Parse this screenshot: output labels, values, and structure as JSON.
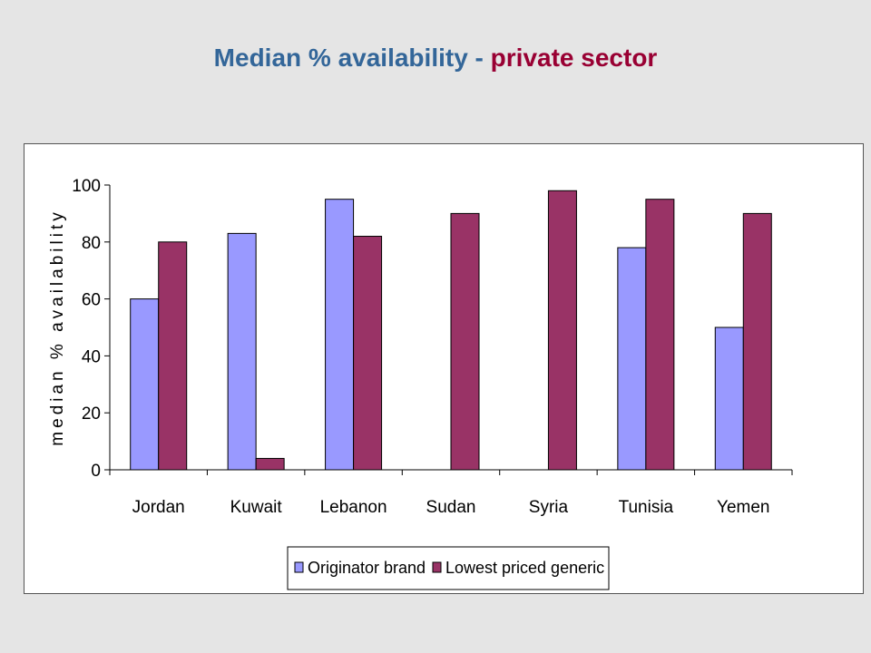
{
  "slide": {
    "title_part1": "Median % availability",
    "title_sep": " - ",
    "title_part2": "private sector"
  },
  "colors": {
    "title_blue": "#336699",
    "title_red": "#990033",
    "series_originator": "#9999ff",
    "series_generic": "#993366"
  },
  "chart_data": {
    "type": "bar",
    "title": "",
    "xlabel": "",
    "ylabel": "median % availability",
    "ylim": [
      0,
      100
    ],
    "yticks": [
      0,
      20,
      40,
      60,
      80,
      100
    ],
    "grid": false,
    "legend_position": "bottom",
    "categories": [
      "Jordan",
      "Kuwait",
      "Lebanon",
      "Sudan",
      "Syria",
      "Tunisia",
      "Yemen"
    ],
    "series": [
      {
        "name": "Originator brand",
        "color": "#9999ff",
        "values": [
          60,
          83,
          95,
          0,
          0,
          78,
          50
        ]
      },
      {
        "name": "Lowest priced generic",
        "color": "#993366",
        "values": [
          80,
          4,
          82,
          90,
          98,
          95,
          90
        ]
      }
    ]
  }
}
